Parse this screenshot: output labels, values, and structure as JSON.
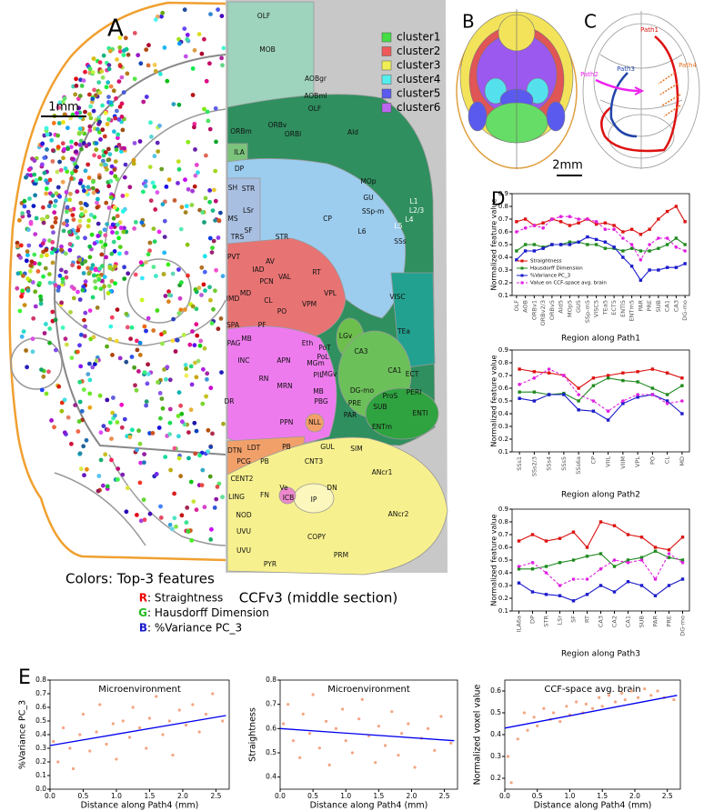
{
  "panels": {
    "a": "A",
    "b": "B",
    "c": "C",
    "d": "D",
    "e": "E"
  },
  "scale_bars": [
    "1mm",
    "2mm"
  ],
  "clusters": [
    {
      "name": "cluster1",
      "color": "#44dd44"
    },
    {
      "name": "cluster2",
      "color": "#ee5a5a"
    },
    {
      "name": "cluster3",
      "color": "#eeee55"
    },
    {
      "name": "cluster4",
      "color": "#55eeee"
    },
    {
      "name": "cluster5",
      "color": "#5a5aee"
    },
    {
      "name": "cluster6",
      "color": "#bb66ee"
    }
  ],
  "feature_legend": {
    "title": "Colors: Top-3 features",
    "items": [
      {
        "key": "R",
        "text": ": Straightness",
        "color": "#ee0000"
      },
      {
        "key": "G",
        "text": ": Hausdorff Dimension",
        "color": "#22bb22"
      },
      {
        "key": "B",
        "text": ": %Variance PC_3",
        "color": "#1a1acc"
      }
    ]
  },
  "atlas": {
    "title": "CCFv3 (middle section)",
    "labels": [
      "OLF",
      "MOB",
      "AOBgr",
      "AOBml",
      "OLF",
      "ORBv",
      "ORBm",
      "ORBl",
      "AId",
      "ILA",
      "DP",
      "MOp",
      "GU",
      "SSp-m",
      "SH",
      "STR",
      "LSr",
      "MS",
      "SF",
      "TRS",
      "CP",
      "STR",
      "L1",
      "L2/3",
      "L4",
      "L5",
      "L6",
      "SSs",
      "PVT",
      "AV",
      "IAD",
      "PCN",
      "VAL",
      "RT",
      "MD",
      "CL",
      "IMD",
      "VPL",
      "PO",
      "VPM",
      "PF",
      "SPA",
      "PAG",
      "MB",
      "Eth",
      "PoT",
      "PoL",
      "MGm",
      "MGv",
      "LGv",
      "APN",
      "INC",
      "RN",
      "MRN",
      "PIL",
      "MB",
      "PBG",
      "PPN",
      "NLL",
      "VISC",
      "TEa",
      "CA3",
      "CA1",
      "ECT",
      "DG-mo",
      "ProS",
      "PRE",
      "PERI",
      "SUB",
      "PAR",
      "ENTl",
      "ENTm",
      "DR",
      "DTN",
      "LDT",
      "PB",
      "PCG",
      "PB",
      "GUL",
      "SIM",
      "CNT3",
      "CENT2",
      "ANcr1",
      "FN",
      "Ve",
      "ICB",
      "DN",
      "IP",
      "LING",
      "NOD",
      "ANcr2",
      "UVU",
      "COPY",
      "UVU",
      "PRM",
      "PYR"
    ]
  },
  "paths": [
    {
      "name": "Path1",
      "color": "#dd1111"
    },
    {
      "name": "Path2",
      "color": "#ee22ee"
    },
    {
      "name": "Path3",
      "color": "#2244aa"
    },
    {
      "name": "Path4",
      "color": "#e07020"
    }
  ],
  "chart_data": [
    {
      "type": "line",
      "xlabel": "Region along Path1",
      "ylabel": "Normalized feature value",
      "legend": "lower left",
      "categories": [
        "OLF",
        "AOB",
        "ORBv1",
        "ORBv2/3",
        "ORBv5",
        "AId5",
        "MOp5",
        "GU5",
        "SSp-m5",
        "VISC5",
        "TEa5",
        "ECT5",
        "ENTl5",
        "ENTm5",
        "PAR",
        "PRE",
        "SUB",
        "CA1",
        "CA3",
        "DG-mo"
      ],
      "ylim": [
        0.1,
        0.9
      ],
      "yticks": [
        0.1,
        0.2,
        0.3,
        0.4,
        0.5,
        0.6,
        0.7,
        0.8,
        0.9
      ],
      "series": [
        {
          "name": "Straightness",
          "color": "#dd1111",
          "marker": "square",
          "dash": false,
          "values": [
            0.68,
            0.7,
            0.65,
            0.67,
            0.7,
            0.68,
            0.65,
            0.67,
            0.7,
            0.66,
            0.67,
            0.65,
            0.6,
            0.62,
            0.58,
            0.62,
            0.7,
            0.76,
            0.8,
            0.68
          ]
        },
        {
          "name": "Hausdorff Dimension",
          "color": "#1f8a1f",
          "marker": "square",
          "dash": false,
          "values": [
            0.45,
            0.5,
            0.5,
            0.48,
            0.5,
            0.5,
            0.52,
            0.52,
            0.5,
            0.5,
            0.47,
            0.47,
            0.45,
            0.47,
            0.45,
            0.45,
            0.47,
            0.5,
            0.55,
            0.5
          ]
        },
        {
          "name": "%Variance PC_3",
          "color": "#1a1acc",
          "marker": "square",
          "dash": false,
          "values": [
            0.38,
            0.45,
            0.45,
            0.47,
            0.5,
            0.5,
            0.5,
            0.52,
            0.56,
            0.54,
            0.52,
            0.48,
            0.4,
            0.33,
            0.22,
            0.3,
            0.3,
            0.32,
            0.32,
            0.35
          ]
        },
        {
          "name": "Value on CCF-space avg. brain",
          "color": "#e020e0",
          "marker": "circle",
          "dash": true,
          "values": [
            0.6,
            0.63,
            0.65,
            0.63,
            0.7,
            0.72,
            0.72,
            0.7,
            0.7,
            0.68,
            0.62,
            0.62,
            0.55,
            0.5,
            0.38,
            0.5,
            0.55,
            0.55,
            0.48,
            0.45
          ]
        }
      ]
    },
    {
      "type": "line",
      "xlabel": "Region along Path2",
      "ylabel": "Normalized feature value",
      "categories": [
        "SSs1",
        "SSs2/3",
        "SSs4",
        "SSs5",
        "SSs6a",
        "CP",
        "VIIL",
        "VIIM",
        "VPL",
        "PO",
        "CL",
        "MD"
      ],
      "ylim": [
        0.1,
        0.9
      ],
      "yticks": [
        0.1,
        0.2,
        0.3,
        0.4,
        0.5,
        0.6,
        0.7,
        0.8,
        0.9
      ],
      "series": [
        {
          "color": "#dd1111",
          "marker": "square",
          "dash": false,
          "values": [
            0.75,
            0.73,
            0.72,
            0.7,
            0.6,
            0.68,
            0.7,
            0.72,
            0.73,
            0.75,
            0.72,
            0.68
          ]
        },
        {
          "color": "#1f8a1f",
          "marker": "square",
          "dash": false,
          "values": [
            0.57,
            0.57,
            0.55,
            0.56,
            0.5,
            0.62,
            0.68,
            0.66,
            0.65,
            0.6,
            0.55,
            0.62
          ]
        },
        {
          "color": "#1a1acc",
          "marker": "square",
          "dash": false,
          "values": [
            0.52,
            0.5,
            0.55,
            0.55,
            0.43,
            0.42,
            0.35,
            0.48,
            0.53,
            0.55,
            0.5,
            0.4
          ]
        },
        {
          "color": "#e020e0",
          "marker": "circle",
          "dash": true,
          "values": [
            0.63,
            0.68,
            0.75,
            0.7,
            0.55,
            0.5,
            0.42,
            0.5,
            0.55,
            0.55,
            0.48,
            0.5
          ]
        }
      ]
    },
    {
      "type": "line",
      "xlabel": "Region along Path3",
      "ylabel": "Normalized feature value",
      "categories": [
        "ILA6a",
        "DP",
        "STR",
        "LSr",
        "SF",
        "RT",
        "CA3",
        "CA2",
        "CA1",
        "SUB",
        "PAR",
        "PRE",
        "DG-mo"
      ],
      "ylim": [
        0.1,
        0.9
      ],
      "yticks": [
        0.1,
        0.2,
        0.3,
        0.4,
        0.5,
        0.6,
        0.7,
        0.8,
        0.9
      ],
      "series": [
        {
          "color": "#dd1111",
          "marker": "square",
          "dash": false,
          "values": [
            0.65,
            0.7,
            0.65,
            0.67,
            0.72,
            0.6,
            0.8,
            0.77,
            0.7,
            0.68,
            0.6,
            0.58,
            0.68
          ]
        },
        {
          "color": "#1f8a1f",
          "marker": "square",
          "dash": false,
          "values": [
            0.43,
            0.43,
            0.45,
            0.48,
            0.5,
            0.53,
            0.55,
            0.45,
            0.5,
            0.52,
            0.57,
            0.52,
            0.5
          ]
        },
        {
          "color": "#1a1acc",
          "marker": "square",
          "dash": false,
          "values": [
            0.32,
            0.25,
            0.23,
            0.22,
            0.18,
            0.23,
            0.3,
            0.25,
            0.33,
            0.3,
            0.22,
            0.3,
            0.35
          ]
        },
        {
          "color": "#e020e0",
          "marker": "circle",
          "dash": true,
          "values": [
            0.45,
            0.48,
            0.4,
            0.3,
            0.35,
            0.35,
            0.43,
            0.5,
            0.48,
            0.5,
            0.35,
            0.55,
            0.48
          ]
        }
      ]
    },
    {
      "type": "scatter",
      "title": "Microenvironment",
      "xlabel": "Distance along Path4 (mm)",
      "ylabel": "%Variance PC_3",
      "color": "#f4a582",
      "x": [
        0.05,
        0.12,
        0.2,
        0.3,
        0.35,
        0.45,
        0.5,
        0.6,
        0.7,
        0.75,
        0.85,
        0.95,
        1.0,
        1.1,
        1.2,
        1.25,
        1.35,
        1.45,
        1.5,
        1.6,
        1.7,
        1.8,
        1.85,
        1.95,
        2.05,
        2.15,
        2.25,
        2.35,
        2.45,
        2.6
      ],
      "values": [
        0.35,
        0.2,
        0.45,
        0.3,
        0.15,
        0.4,
        0.55,
        0.28,
        0.42,
        0.62,
        0.33,
        0.48,
        0.22,
        0.5,
        0.38,
        0.6,
        0.45,
        0.3,
        0.52,
        0.68,
        0.4,
        0.5,
        0.25,
        0.58,
        0.47,
        0.62,
        0.42,
        0.55,
        0.7,
        0.5
      ],
      "fit": {
        "x": [
          0,
          2.65
        ],
        "values": [
          0.32,
          0.54
        ],
        "color": "#0000ee"
      },
      "xlim": [
        0,
        2.7
      ],
      "xticks": [
        {
          "value": 0,
          "label": "0.0"
        },
        0.5,
        {
          "value": 1,
          "label": "1.0"
        },
        1.5,
        {
          "value": 2,
          "label": "2.0"
        },
        2.5
      ],
      "ylim": [
        0,
        0.8
      ],
      "yticks": [
        {
          "value": 0,
          "label": "0.0"
        },
        0.1,
        0.2,
        0.3,
        0.4,
        0.5,
        0.6,
        0.7,
        0.8
      ]
    },
    {
      "type": "scatter",
      "title": "Microenvironment",
      "xlabel": "Distance along Path4 (mm)",
      "ylabel": "Straightness",
      "color": "#f4a582",
      "x": [
        0.05,
        0.12,
        0.2,
        0.3,
        0.35,
        0.45,
        0.5,
        0.6,
        0.7,
        0.75,
        0.85,
        0.95,
        1.0,
        1.1,
        1.2,
        1.25,
        1.35,
        1.45,
        1.5,
        1.6,
        1.7,
        1.8,
        1.85,
        1.95,
        2.05,
        2.15,
        2.25,
        2.35,
        2.45,
        2.6
      ],
      "values": [
        0.62,
        0.7,
        0.55,
        0.48,
        0.66,
        0.58,
        0.74,
        0.52,
        0.63,
        0.45,
        0.6,
        0.68,
        0.55,
        0.5,
        0.64,
        0.72,
        0.57,
        0.46,
        0.61,
        0.53,
        0.67,
        0.49,
        0.58,
        0.62,
        0.44,
        0.56,
        0.6,
        0.51,
        0.65,
        0.54
      ],
      "fit": {
        "x": [
          0,
          2.65
        ],
        "values": [
          0.6,
          0.55
        ],
        "color": "#0000ee"
      },
      "xlim": [
        0,
        2.7
      ],
      "xticks": [
        {
          "value": 0,
          "label": "0.0"
        },
        0.5,
        {
          "value": 1,
          "label": "1.0"
        },
        1.5,
        {
          "value": 2,
          "label": "2.0"
        },
        2.5
      ],
      "ylim": [
        0.35,
        0.8
      ],
      "yticks": [
        0.4,
        0.5,
        0.6,
        0.7,
        0.8
      ]
    },
    {
      "type": "scatter",
      "title": "CCF-space avg. brain",
      "xlabel": "Distance along Path4 (mm)",
      "ylabel": "Normalized voxel value",
      "color": "#f4a582",
      "x": [
        0.05,
        0.1,
        0.2,
        0.3,
        0.35,
        0.45,
        0.5,
        0.6,
        0.7,
        0.75,
        0.85,
        0.95,
        1.0,
        1.1,
        1.2,
        1.25,
        1.35,
        1.45,
        1.5,
        1.6,
        1.7,
        1.8,
        1.85,
        1.95,
        2.05,
        2.15,
        2.25,
        2.35,
        2.45,
        2.6
      ],
      "values": [
        0.3,
        0.18,
        0.38,
        0.5,
        0.42,
        0.48,
        0.44,
        0.52,
        0.47,
        0.5,
        0.46,
        0.53,
        0.49,
        0.55,
        0.5,
        0.54,
        0.52,
        0.57,
        0.53,
        0.58,
        0.55,
        0.59,
        0.56,
        0.6,
        0.57,
        0.61,
        0.58,
        0.6,
        0.57,
        0.56
      ],
      "fit": {
        "x": [
          0,
          2.65
        ],
        "values": [
          0.43,
          0.58
        ],
        "color": "#0000ee"
      },
      "xlim": [
        0,
        2.7
      ],
      "xticks": [
        {
          "value": 0,
          "label": "0.0"
        },
        0.5,
        {
          "value": 1,
          "label": "1.0"
        },
        1.5,
        {
          "value": 2,
          "label": "2.0"
        },
        2.5
      ],
      "ylim": [
        0.15,
        0.65
      ],
      "yticks": [
        0.2,
        0.3,
        0.4,
        0.5,
        0.6
      ]
    }
  ]
}
